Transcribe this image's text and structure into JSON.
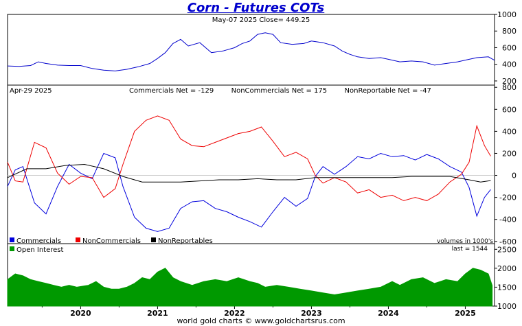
{
  "title": "Corn - Futures COTs",
  "footer": "world gold charts © www.goldchartsrus.com",
  "colors": {
    "title": "#0000cc",
    "price": "#0000cc",
    "commercials": "#0000dd",
    "noncommercials": "#ee0000",
    "nonreportables": "#000000",
    "open_interest": "#009900",
    "zero_line": "#cccccc"
  },
  "chart_data": [
    {
      "type": "line",
      "panel": "price",
      "header": "May-07  2025   Close= 449.25",
      "ylim": [
        150,
        1000
      ],
      "yticks": [
        "1000",
        "800",
        "600",
        "400",
        "200"
      ],
      "ytick_values": [
        1000,
        800,
        600,
        400,
        200
      ],
      "x_date_range": [
        2019.05,
        2025.38
      ],
      "series": [
        {
          "x": [
            2019.05,
            2019.2,
            2019.35,
            2019.45,
            2019.55,
            2019.7,
            2019.85,
            2020.0,
            2020.15,
            2020.3,
            2020.45,
            2020.6,
            2020.75,
            2020.9,
            2021.0,
            2021.1,
            2021.2,
            2021.3,
            2021.4,
            2021.55,
            2021.7,
            2021.85,
            2022.0,
            2022.1,
            2022.2,
            2022.3,
            2022.4,
            2022.5,
            2022.6,
            2022.75,
            2022.9,
            2023.0,
            2023.15,
            2023.3,
            2023.4,
            2023.5,
            2023.6,
            2023.75,
            2023.9,
            2024.0,
            2024.15,
            2024.3,
            2024.45,
            2024.6,
            2024.75,
            2024.9,
            2025.0,
            2025.15,
            2025.3,
            2025.38
          ],
          "values": [
            380,
            375,
            385,
            430,
            410,
            390,
            385,
            385,
            350,
            330,
            320,
            340,
            370,
            410,
            470,
            540,
            650,
            700,
            620,
            660,
            540,
            560,
            600,
            650,
            680,
            760,
            780,
            760,
            660,
            640,
            650,
            680,
            660,
            620,
            560,
            520,
            490,
            470,
            480,
            460,
            430,
            440,
            430,
            390,
            410,
            430,
            450,
            480,
            490,
            449
          ]
        }
      ]
    },
    {
      "type": "line",
      "panel": "cot-net",
      "header_date": "Apr-29  2025",
      "header_values": "Commercials Net = -129        NonCommercials Net = 175        NonReportable Net = -47",
      "ylim": [
        -620,
        820
      ],
      "yticks": [
        "800",
        "600",
        "400",
        "200",
        "0",
        "-200",
        "-400",
        "-600"
      ],
      "ytick_values": [
        800,
        600,
        400,
        200,
        0,
        -200,
        -400,
        -600
      ],
      "legend": [
        "Commercials",
        "NonCommercials",
        "NonReportables"
      ],
      "legend_placement": "bottom-left",
      "units_note": "volumes in 1000's",
      "series": [
        {
          "name": "Commercials",
          "x": [
            2019.05,
            2019.15,
            2019.25,
            2019.4,
            2019.55,
            2019.7,
            2019.85,
            2020.0,
            2020.15,
            2020.3,
            2020.45,
            2020.55,
            2020.7,
            2020.85,
            2021.0,
            2021.15,
            2021.3,
            2021.45,
            2021.6,
            2021.75,
            2021.9,
            2022.05,
            2022.2,
            2022.35,
            2022.5,
            2022.65,
            2022.8,
            2022.95,
            2023.05,
            2023.15,
            2023.3,
            2023.45,
            2023.6,
            2023.75,
            2023.9,
            2024.05,
            2024.2,
            2024.35,
            2024.5,
            2024.65,
            2024.8,
            2024.95,
            2025.05,
            2025.15,
            2025.25,
            2025.33
          ],
          "values": [
            -100,
            50,
            80,
            -250,
            -350,
            -100,
            100,
            20,
            -30,
            200,
            160,
            -100,
            -380,
            -480,
            -510,
            -480,
            -300,
            -240,
            -230,
            -300,
            -330,
            -380,
            -420,
            -470,
            -330,
            -200,
            -280,
            -210,
            -10,
            80,
            10,
            80,
            170,
            150,
            200,
            170,
            180,
            140,
            190,
            150,
            80,
            30,
            -110,
            -370,
            -200,
            -129
          ]
        },
        {
          "name": "NonCommercials",
          "x": [
            2019.05,
            2019.15,
            2019.25,
            2019.4,
            2019.55,
            2019.7,
            2019.85,
            2020.0,
            2020.15,
            2020.3,
            2020.45,
            2020.55,
            2020.7,
            2020.85,
            2021.0,
            2021.15,
            2021.3,
            2021.45,
            2021.6,
            2021.75,
            2021.9,
            2022.05,
            2022.2,
            2022.35,
            2022.5,
            2022.65,
            2022.8,
            2022.95,
            2023.05,
            2023.15,
            2023.3,
            2023.45,
            2023.6,
            2023.75,
            2023.9,
            2024.05,
            2024.2,
            2024.35,
            2024.5,
            2024.65,
            2024.8,
            2024.95,
            2025.05,
            2025.15,
            2025.25,
            2025.33
          ],
          "values": [
            120,
            -50,
            -60,
            300,
            250,
            20,
            -80,
            -10,
            -20,
            -200,
            -120,
            100,
            400,
            500,
            540,
            500,
            330,
            270,
            260,
            300,
            340,
            380,
            400,
            440,
            310,
            170,
            210,
            150,
            0,
            -70,
            -20,
            -60,
            -160,
            -130,
            -200,
            -180,
            -230,
            -200,
            -230,
            -170,
            -60,
            10,
            120,
            450,
            270,
            175
          ]
        },
        {
          "name": "NonReportables",
          "x": [
            2019.05,
            2019.3,
            2019.55,
            2019.8,
            2020.05,
            2020.3,
            2020.55,
            2020.8,
            2021.05,
            2021.3,
            2021.55,
            2021.8,
            2022.05,
            2022.3,
            2022.55,
            2022.8,
            2023.05,
            2023.3,
            2023.55,
            2023.8,
            2024.05,
            2024.3,
            2024.55,
            2024.8,
            2025.05,
            2025.2,
            2025.33
          ],
          "values": [
            -20,
            60,
            60,
            90,
            100,
            60,
            -10,
            -60,
            -60,
            -60,
            -50,
            -40,
            -40,
            -30,
            -40,
            -40,
            -20,
            -20,
            -20,
            -20,
            -20,
            -10,
            -10,
            -10,
            -40,
            -60,
            -47
          ]
        }
      ]
    },
    {
      "type": "area",
      "panel": "open-interest",
      "legend": [
        "Open Interest"
      ],
      "legend_placement": "top-left",
      "last_label": "last = 1544",
      "ylim": [
        1000,
        2650
      ],
      "yticks": [
        "2500",
        "2000",
        "1500",
        "1000"
      ],
      "ytick_values": [
        2500,
        2000,
        1500,
        1000
      ],
      "xtick_labels": [
        "2020",
        "2021",
        "2022",
        "2023",
        "2024",
        "2025"
      ],
      "xtick_values": [
        2020.0,
        2021.0,
        2022.0,
        2023.0,
        2024.0,
        2025.0
      ],
      "series": [
        {
          "name": "Open Interest",
          "x": [
            2019.05,
            2019.15,
            2019.25,
            2019.35,
            2019.45,
            2019.55,
            2019.65,
            2019.75,
            2019.85,
            2019.95,
            2020.1,
            2020.2,
            2020.3,
            2020.4,
            2020.5,
            2020.6,
            2020.7,
            2020.8,
            2020.9,
            2021.0,
            2021.1,
            2021.2,
            2021.3,
            2021.45,
            2021.6,
            2021.75,
            2021.9,
            2022.05,
            2022.2,
            2022.3,
            2022.4,
            2022.55,
            2022.7,
            2022.85,
            2023.0,
            2023.15,
            2023.3,
            2023.45,
            2023.6,
            2023.75,
            2023.9,
            2024.05,
            2024.15,
            2024.3,
            2024.45,
            2024.6,
            2024.75,
            2024.9,
            2025.0,
            2025.1,
            2025.2,
            2025.3,
            2025.35
          ],
          "values": [
            1700,
            1850,
            1800,
            1700,
            1650,
            1600,
            1550,
            1500,
            1550,
            1500,
            1550,
            1650,
            1500,
            1450,
            1450,
            1500,
            1600,
            1750,
            1700,
            1900,
            2000,
            1750,
            1650,
            1550,
            1650,
            1700,
            1650,
            1750,
            1650,
            1600,
            1500,
            1550,
            1500,
            1450,
            1400,
            1350,
            1300,
            1350,
            1400,
            1450,
            1500,
            1650,
            1550,
            1700,
            1750,
            1600,
            1700,
            1650,
            1850,
            2000,
            1950,
            1850,
            1544
          ]
        }
      ]
    }
  ]
}
